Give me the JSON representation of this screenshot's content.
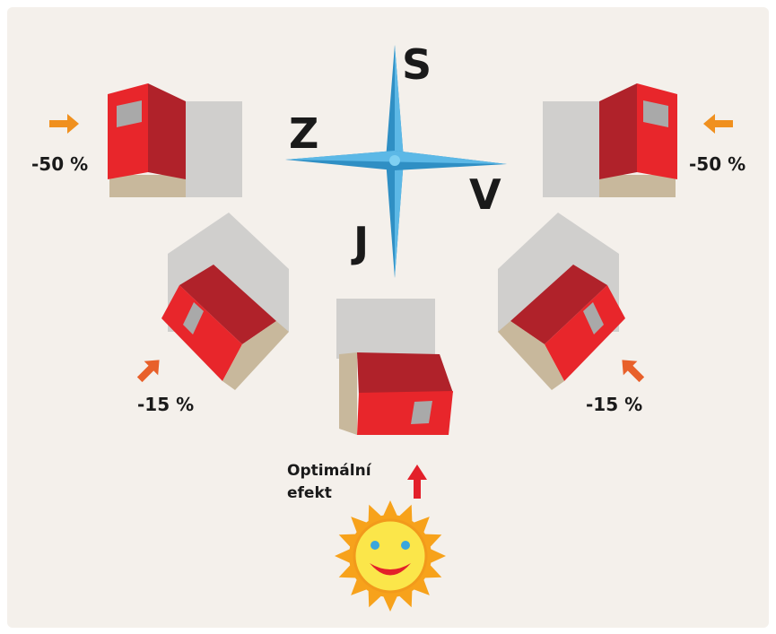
{
  "compass": {
    "north": "S",
    "west": "Z",
    "east": "V",
    "south": "J"
  },
  "labels": {
    "top_left": "-50 %",
    "top_right": "-50 %",
    "middle_left": "-15 %",
    "middle_right": "-15 %",
    "optimal": [
      "Optimální",
      "efekt"
    ]
  }
}
